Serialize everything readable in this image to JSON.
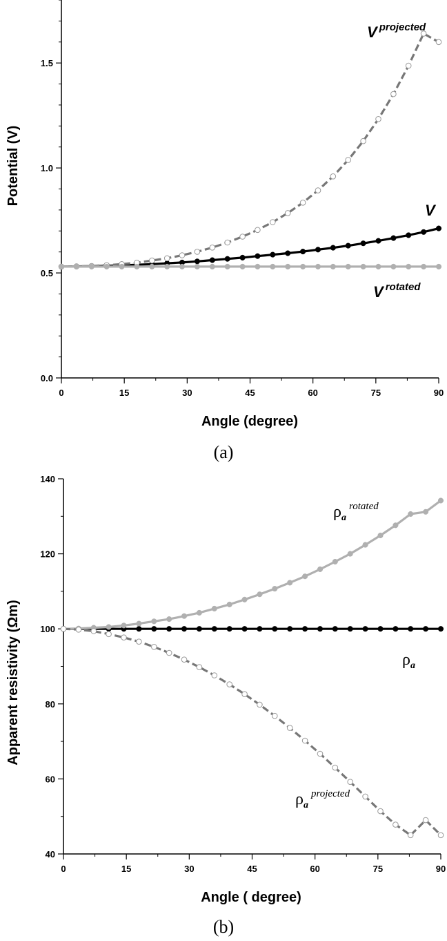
{
  "chart_data": [
    {
      "type": "line",
      "panel_label": "(a)",
      "xlabel": "Angle (degree)",
      "ylabel": "Potential (V)",
      "xlim": [
        0,
        90
      ],
      "ylim": [
        0,
        1.8
      ],
      "xticks": [
        "0",
        "15",
        "30",
        "45",
        "60",
        "75",
        "90"
      ],
      "yticks": [
        "0.0",
        "0.5",
        "1.0",
        "1.5"
      ],
      "x": [
        0,
        3.6,
        7.2,
        10.8,
        14.4,
        18,
        21.6,
        25.2,
        28.8,
        32.4,
        36,
        39.6,
        43.2,
        46.8,
        50.4,
        54,
        57.6,
        61.2,
        64.8,
        68.4,
        72,
        75.6,
        79.2,
        82.8,
        86.4,
        90
      ],
      "series": [
        {
          "name": "V",
          "name_main": "V",
          "name_sup": "",
          "style": "solid-black",
          "color": "#000000",
          "marker_fill": "#000000",
          "values": [
            0.53,
            0.531,
            0.532,
            0.534,
            0.536,
            0.539,
            0.542,
            0.546,
            0.55,
            0.555,
            0.561,
            0.567,
            0.573,
            0.58,
            0.587,
            0.594,
            0.602,
            0.611,
            0.62,
            0.63,
            0.641,
            0.653,
            0.666,
            0.68,
            0.695,
            0.712
          ]
        },
        {
          "name": "V projected",
          "name_main": "V",
          "name_sup": "projected",
          "style": "dashed-gray",
          "color": "#777777",
          "marker_fill": "#ffffff",
          "values": [
            0.53,
            0.531,
            0.533,
            0.537,
            0.542,
            0.549,
            0.559,
            0.57,
            0.584,
            0.601,
            0.621,
            0.645,
            0.673,
            0.705,
            0.742,
            0.785,
            0.835,
            0.893,
            0.96,
            1.038,
            1.128,
            1.233,
            1.352,
            1.487,
            1.64,
            1.6
          ]
        },
        {
          "name": "V rotated",
          "name_main": "V",
          "name_sup": "rotated",
          "style": "solid-lightgray",
          "color": "#b0b0b0",
          "marker_fill": "#b0b0b0",
          "values": [
            0.53,
            0.53,
            0.53,
            0.53,
            0.53,
            0.53,
            0.53,
            0.53,
            0.53,
            0.53,
            0.53,
            0.53,
            0.53,
            0.53,
            0.53,
            0.53,
            0.53,
            0.53,
            0.53,
            0.53,
            0.53,
            0.53,
            0.53,
            0.53,
            0.53,
            0.53
          ]
        }
      ]
    },
    {
      "type": "line",
      "panel_label": "(b)",
      "xlabel": "Angle ( degree)",
      "ylabel": "Apparent resistivity (Ωm)",
      "xlim": [
        0,
        90
      ],
      "ylim": [
        40,
        140
      ],
      "xticks": [
        "0",
        "15",
        "30",
        "45",
        "60",
        "75",
        "90"
      ],
      "yticks": [
        "40",
        "60",
        "80",
        "100",
        "120",
        "140"
      ],
      "x": [
        0,
        3.6,
        7.2,
        10.8,
        14.4,
        18,
        21.6,
        25.2,
        28.8,
        32.4,
        36,
        39.6,
        43.2,
        46.8,
        50.4,
        54,
        57.6,
        61.2,
        64.8,
        68.4,
        72,
        75.6,
        79.2,
        82.8,
        86.4,
        90
      ],
      "series": [
        {
          "name": "ρa",
          "name_main": "ρ",
          "name_sub": "a",
          "name_sup": "",
          "style": "solid-black",
          "color": "#000000",
          "marker_fill": "#000000",
          "values": [
            100,
            100,
            100,
            100,
            100,
            100,
            100,
            100,
            100,
            100,
            100,
            100,
            100,
            100,
            100,
            100,
            100,
            100,
            100,
            100,
            100,
            100,
            100,
            100,
            100,
            100
          ]
        },
        {
          "name": "ρa rotated",
          "name_main": "ρ",
          "name_sub": "a",
          "name_sup": "rotated",
          "style": "solid-lightgray",
          "color": "#b0b0b0",
          "marker_fill": "#b0b0b0",
          "values": [
            100.0,
            100.1,
            100.3,
            100.5,
            100.9,
            101.4,
            102.0,
            102.6,
            103.4,
            104.3,
            105.4,
            106.5,
            107.8,
            109.2,
            110.7,
            112.3,
            114.0,
            115.9,
            117.9,
            120.0,
            122.4,
            124.9,
            127.6,
            130.6,
            131.2,
            134.2
          ]
        },
        {
          "name": "ρa projected",
          "name_main": "ρ",
          "name_sub": "a",
          "name_sup": "projected",
          "style": "dashed-gray",
          "color": "#777777",
          "marker_fill": "#ffffff",
          "values": [
            100.0,
            99.8,
            99.4,
            98.6,
            97.7,
            96.6,
            95.2,
            93.6,
            91.8,
            89.8,
            87.6,
            85.2,
            82.6,
            79.8,
            76.8,
            73.6,
            70.2,
            66.7,
            63.0,
            59.2,
            55.3,
            51.4,
            47.8,
            45.0,
            49.0,
            45.0
          ]
        }
      ]
    }
  ]
}
